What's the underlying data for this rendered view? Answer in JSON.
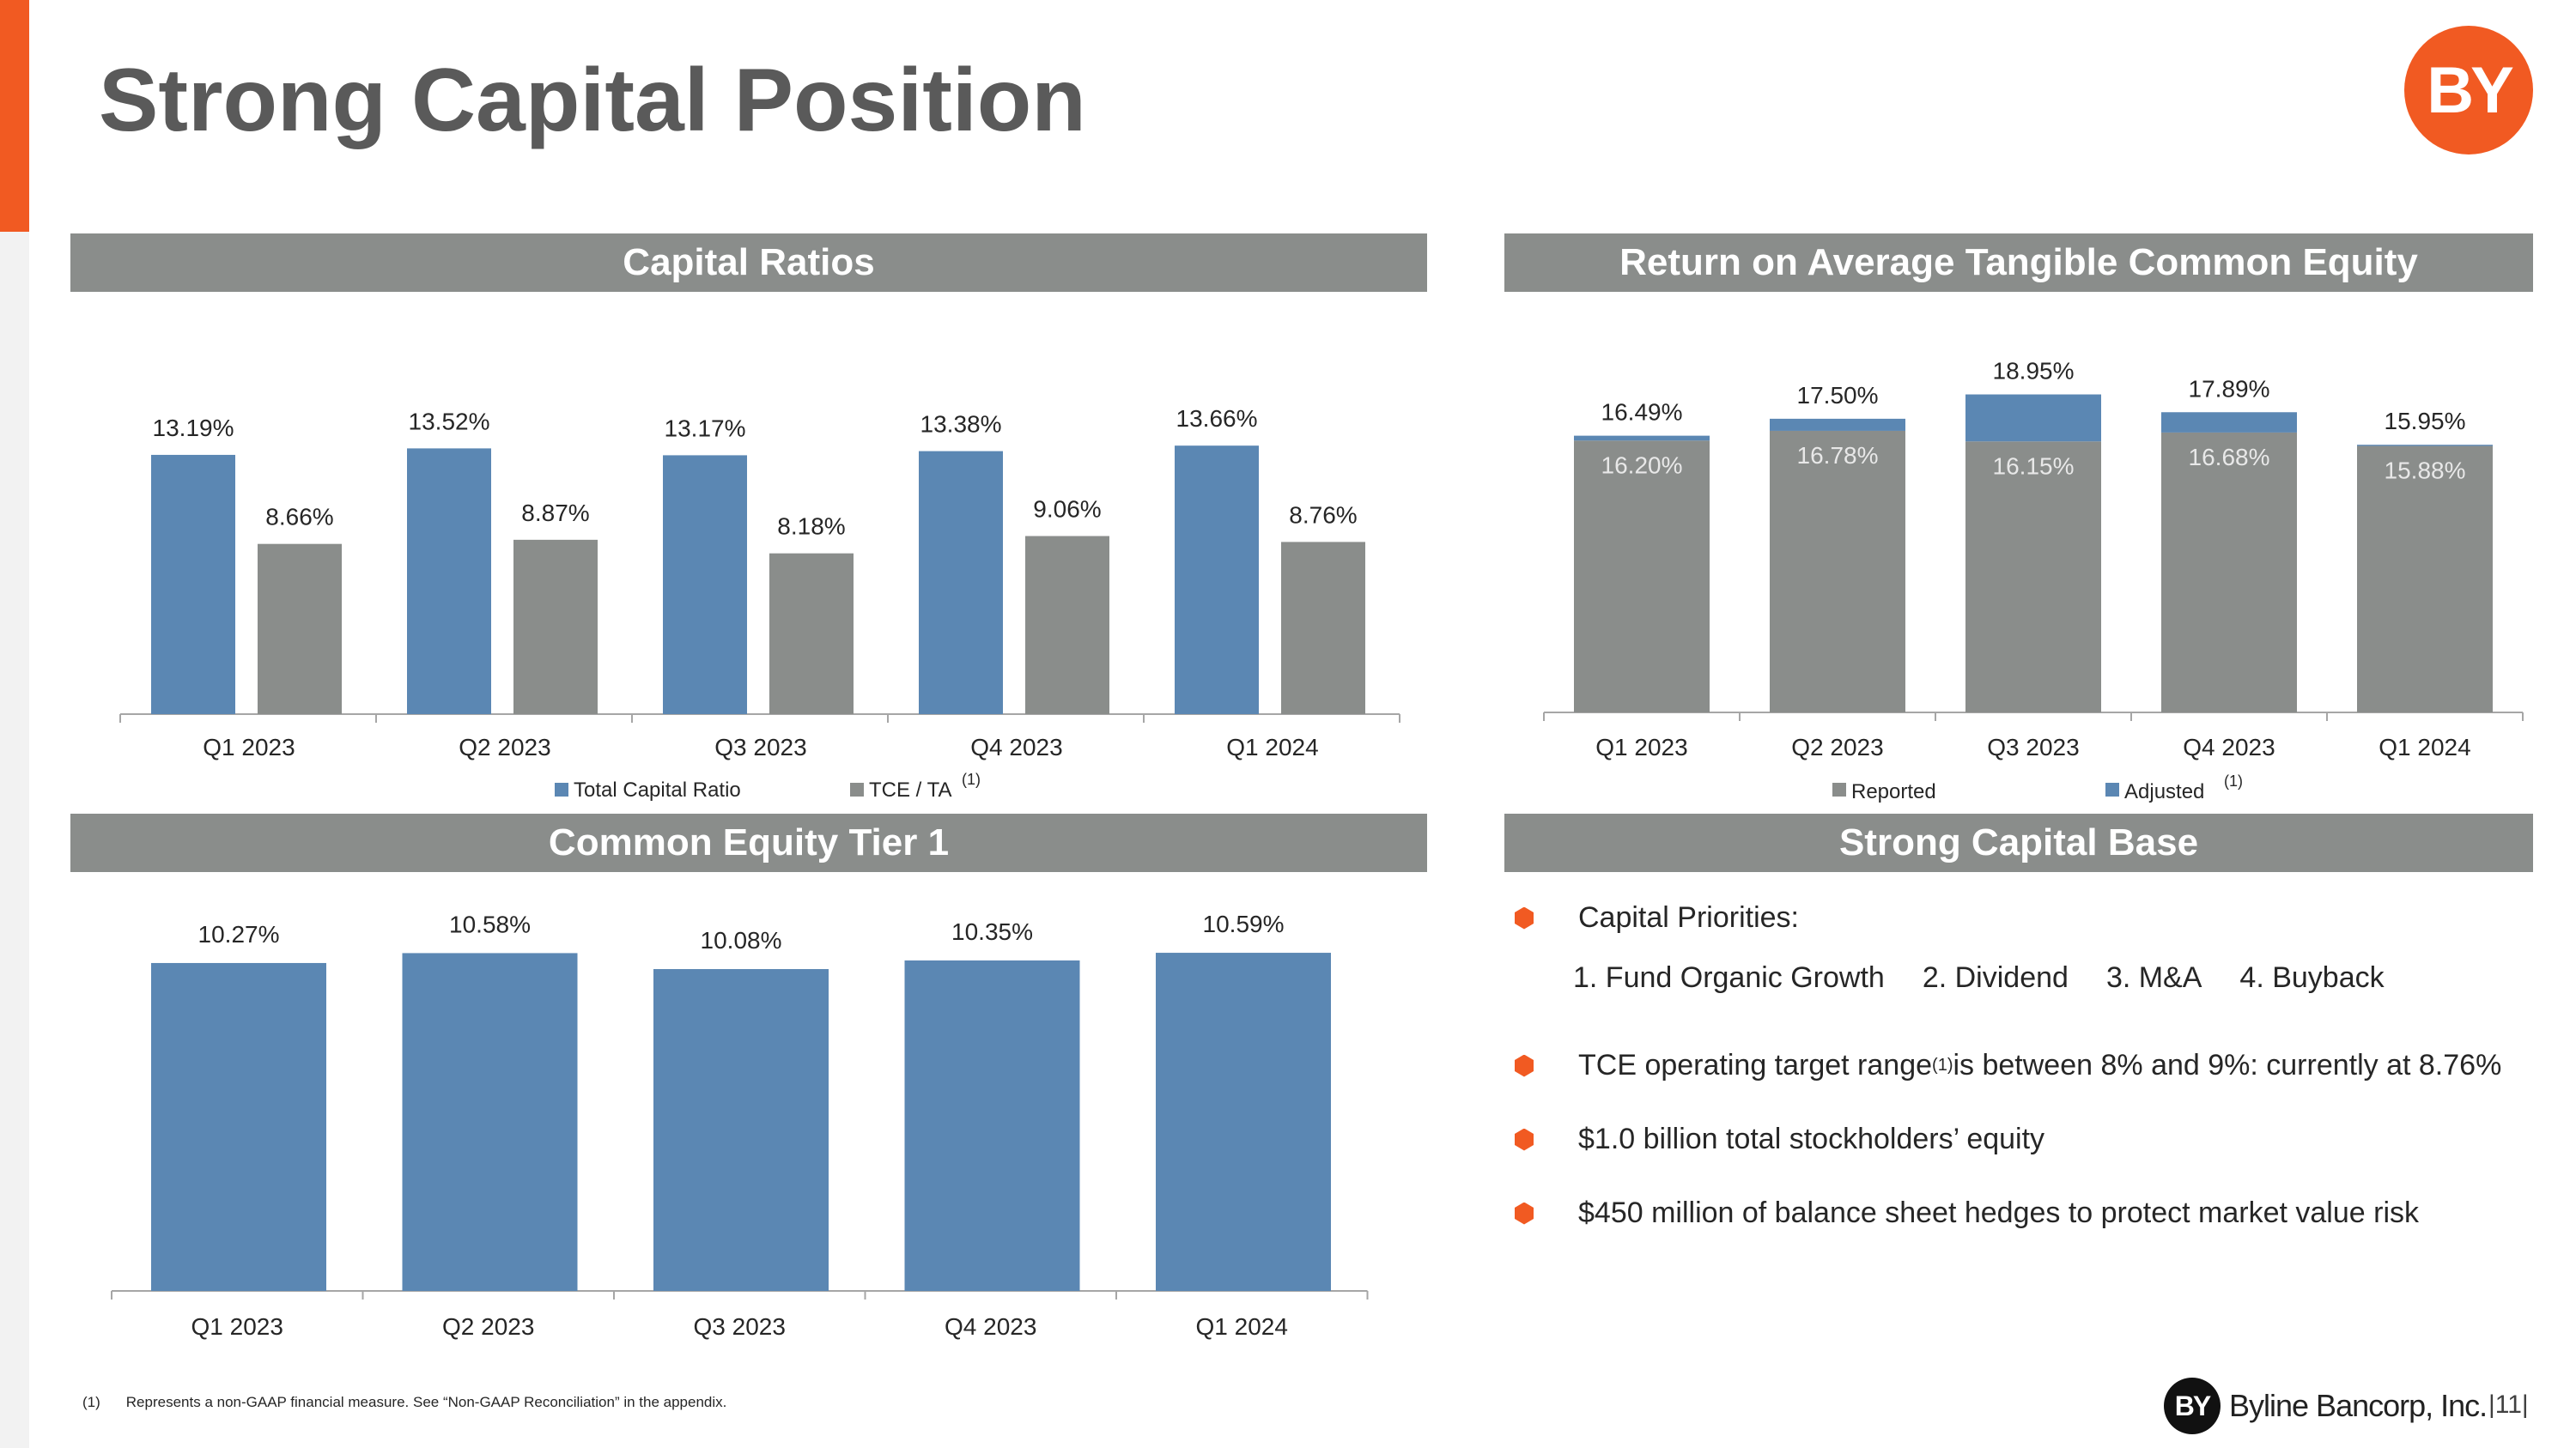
{
  "header": {
    "title": "Strong Capital Position",
    "logo_text": "BY",
    "accent_color": "#f15a22"
  },
  "sections": {
    "capital_ratios": "Capital Ratios",
    "rotce": "Return on Average Tangible Common Equity",
    "cet1": "Common Equity Tier 1",
    "capital_base": "Strong Capital Base"
  },
  "chart_data": [
    {
      "type": "bar",
      "categories": [
        "Q1 2023",
        "Q2 2023",
        "Q3 2023",
        "Q4 2023",
        "Q1 2024"
      ],
      "series": [
        {
          "name": "Total Capital Ratio",
          "values": [
            13.19,
            13.52,
            13.17,
            13.38,
            13.66
          ],
          "labels": [
            "13.19%",
            "13.52%",
            "13.17%",
            "13.38%",
            "13.66%"
          ],
          "color": "#5b87b3"
        },
        {
          "name": "TCE / TA",
          "values": [
            8.66,
            8.87,
            8.18,
            9.06,
            8.76
          ],
          "labels": [
            "8.66%",
            "8.87%",
            "8.18%",
            "9.06%",
            "8.76%"
          ],
          "color": "#8a8d8b",
          "footnote": "(1)"
        }
      ],
      "legend": "bottom"
    },
    {
      "type": "bar",
      "stacked": true,
      "categories": [
        "Q1 2023",
        "Q2 2023",
        "Q3 2023",
        "Q4 2023",
        "Q1 2024"
      ],
      "series": [
        {
          "name": "Reported",
          "values": [
            16.2,
            16.78,
            16.15,
            16.68,
            15.88
          ],
          "labels": [
            "16.20%",
            "16.78%",
            "16.15%",
            "16.68%",
            "15.88%"
          ],
          "color": "#8a8d8b"
        },
        {
          "name": "Adjusted",
          "values": [
            16.49,
            17.5,
            18.95,
            17.89,
            15.95
          ],
          "labels": [
            "16.49%",
            "17.50%",
            "18.95%",
            "17.89%",
            "15.95%"
          ],
          "color": "#5b87b3",
          "footnote": "(1)"
        }
      ],
      "legend": "bottom"
    },
    {
      "type": "bar",
      "categories": [
        "Q1 2023",
        "Q2 2023",
        "Q3 2023",
        "Q4 2023",
        "Q1 2024"
      ],
      "series": [
        {
          "values": [
            10.27,
            10.58,
            10.08,
            10.35,
            10.59
          ],
          "labels": [
            "10.27%",
            "10.58%",
            "10.08%",
            "10.35%",
            "10.59%"
          ],
          "color": "#5b87b3"
        }
      ]
    }
  ],
  "capital_base": {
    "priorities_label": "Capital Priorities:",
    "priorities": [
      "1. Fund Organic Growth",
      "2. Dividend",
      "3. M&A",
      "4. Buyback"
    ],
    "tce_pre": "TCE operating target range",
    "tce_sup": "(1)",
    "tce_post": " is between 8% and 9%: currently at 8.76%",
    "equity": "$1.0 billion total stockholders’ equity",
    "hedges": "$450 million of balance sheet hedges to protect market value risk"
  },
  "footer": {
    "footnote_num": "(1)",
    "footnote_text": "Represents a non-GAAP financial measure.  See “Non-GAAP Reconciliation” in the appendix.",
    "logo_mark": "BY",
    "company": "Byline Bancorp, Inc.",
    "page": "|11|"
  }
}
